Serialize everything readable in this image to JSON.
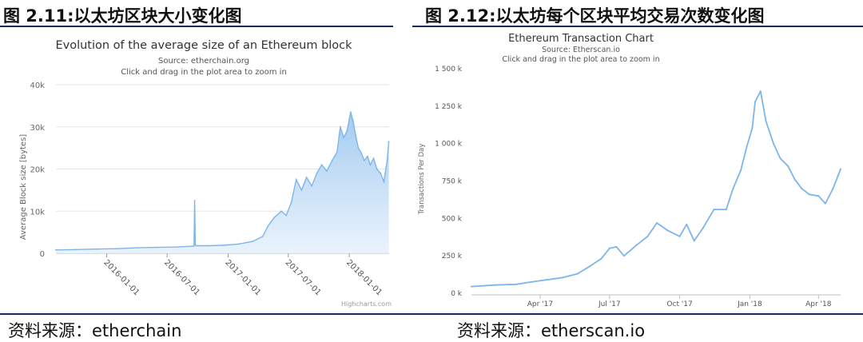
{
  "figures": {
    "left": {
      "label": "图 2.11:以太坊区块大小变化图",
      "source": "资料来源：etherchain"
    },
    "right": {
      "label": "图 2.12:以太坊每个区块平均交易次数变化图",
      "source": "资料来源：etherscan.io"
    }
  },
  "colors": {
    "rule": "#1a2c5a",
    "series": "#7cb5ec",
    "fill_top": "#9ec8f0",
    "fill_bottom": "#e8f2fc"
  },
  "chart_data": [
    {
      "type": "area",
      "title": "Evolution of the average size of an Ethereum block",
      "subtitle": "Source: etherchain.org",
      "subtitle2": "Click and drag in the plot area to zoom in",
      "ylabel": "Average Block size [bytes]",
      "xlabel": "",
      "credit": "Highcharts.com",
      "ylim": [
        0,
        40000
      ],
      "y_ticks": [
        0,
        10000,
        20000,
        30000,
        40000
      ],
      "y_tick_labels": [
        "0",
        "10k",
        "20k",
        "30k",
        "40k"
      ],
      "x_ticks": [
        "2016-01-01",
        "2016-07-01",
        "2017-01-01",
        "2017-07-01",
        "2018-01-01"
      ],
      "grid": true,
      "series": [
        {
          "x": [
            "2015-08-01",
            "2015-10-01",
            "2015-12-01",
            "2016-02-01",
            "2016-04-01",
            "2016-06-01",
            "2016-08-01",
            "2016-09-20",
            "2016-09-22",
            "2016-09-24",
            "2016-09-27",
            "2016-11-01",
            "2016-12-15",
            "2017-02-01",
            "2017-03-15",
            "2017-04-15",
            "2017-05-01",
            "2017-05-20",
            "2017-06-10",
            "2017-06-25",
            "2017-07-10",
            "2017-07-25",
            "2017-08-10",
            "2017-08-25",
            "2017-09-10",
            "2017-09-25",
            "2017-10-10",
            "2017-10-25",
            "2017-11-10",
            "2017-11-25",
            "2017-12-05",
            "2017-12-15",
            "2017-12-25",
            "2018-01-05",
            "2018-01-12",
            "2018-01-20",
            "2018-01-28",
            "2018-02-05",
            "2018-02-15",
            "2018-02-25",
            "2018-03-05",
            "2018-03-15",
            "2018-03-25",
            "2018-04-05",
            "2018-04-15",
            "2018-04-25",
            "2018-04-30"
          ],
          "values": [
            800,
            900,
            1000,
            1100,
            1300,
            1400,
            1500,
            1700,
            12500,
            2000,
            1800,
            1800,
            1900,
            2200,
            2800,
            4000,
            6500,
            8500,
            10000,
            9000,
            12000,
            17500,
            15000,
            18000,
            16000,
            19000,
            21000,
            19500,
            22000,
            24000,
            30000,
            27500,
            29000,
            33500,
            31500,
            28000,
            25000,
            24000,
            22000,
            23000,
            21000,
            22500,
            20000,
            19000,
            17000,
            22000,
            26500
          ]
        }
      ]
    },
    {
      "type": "line",
      "title": "Ethereum Transaction Chart",
      "subtitle": "Source: Etherscan.io",
      "subtitle2": "Click and drag in the plot area to zoom in",
      "ylabel": "Transactions Per Day",
      "xlabel": "",
      "ylim": [
        0,
        1500000
      ],
      "y_ticks": [
        0,
        250000,
        500000,
        750000,
        1000000,
        1250000,
        1500000
      ],
      "y_tick_labels": [
        "0 k",
        "250 k",
        "500 k",
        "750 k",
        "1 000 k",
        "1 250 k",
        "1 500 k"
      ],
      "x_ticks": [
        "Apr '17",
        "Jul '17",
        "Oct '17",
        "Jan '18",
        "Apr '18"
      ],
      "grid": false,
      "series": [
        {
          "x": [
            "2017-01-01",
            "2017-02-01",
            "2017-03-01",
            "2017-03-20",
            "2017-04-10",
            "2017-05-01",
            "2017-05-20",
            "2017-06-05",
            "2017-06-20",
            "2017-07-01",
            "2017-07-10",
            "2017-07-20",
            "2017-08-05",
            "2017-08-20",
            "2017-09-01",
            "2017-09-15",
            "2017-10-01",
            "2017-10-10",
            "2017-10-20",
            "2017-11-01",
            "2017-11-15",
            "2017-12-01",
            "2017-12-10",
            "2017-12-20",
            "2017-12-28",
            "2018-01-04",
            "2018-01-08",
            "2018-01-15",
            "2018-01-22",
            "2018-02-01",
            "2018-02-10",
            "2018-02-20",
            "2018-03-01",
            "2018-03-10",
            "2018-03-20",
            "2018-04-01",
            "2018-04-10",
            "2018-04-20",
            "2018-04-30"
          ],
          "values": [
            45000,
            55000,
            60000,
            75000,
            90000,
            105000,
            130000,
            180000,
            230000,
            300000,
            310000,
            250000,
            320000,
            380000,
            470000,
            420000,
            380000,
            460000,
            350000,
            440000,
            560000,
            560000,
            700000,
            820000,
            980000,
            1100000,
            1280000,
            1350000,
            1150000,
            1000000,
            900000,
            850000,
            760000,
            700000,
            660000,
            650000,
            600000,
            700000,
            830000
          ]
        }
      ]
    }
  ]
}
